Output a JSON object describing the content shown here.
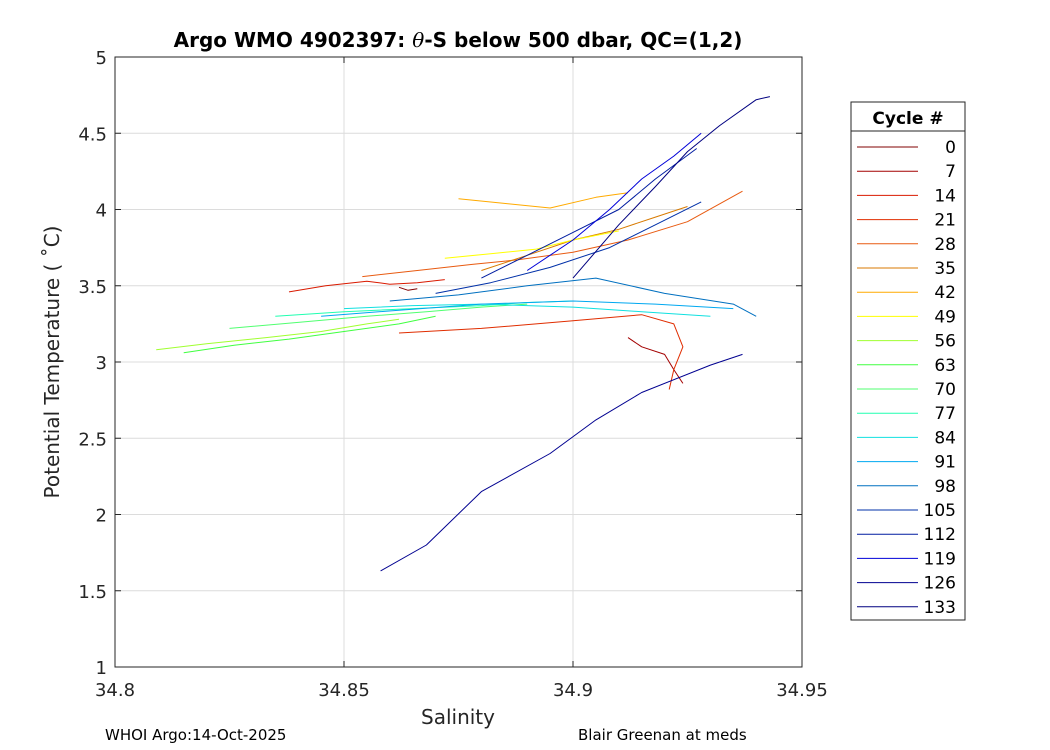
{
  "chart_data": {
    "type": "line",
    "title": "Argo WMO 4902397: θ-S below 500 dbar,  QC=(1,2)",
    "title_prefix": "Argo WMO 4902397: ",
    "title_theta": "θ",
    "title_suffix": "-S below 500 dbar,  QC=(1,2)",
    "xlabel": "Salinity",
    "ylabel": "Potential Temperature ( ˚C)",
    "xlim": [
      34.8,
      34.95
    ],
    "ylim": [
      1,
      5
    ],
    "xticks": [
      "34.8",
      "34.85",
      "34.9",
      "34.95"
    ],
    "yticks": [
      "1",
      "1.5",
      "2",
      "2.5",
      "3",
      "3.5",
      "4",
      "4.5",
      "5"
    ],
    "grid": true,
    "legend": {
      "title": "Cycle #",
      "placement": "outside-right",
      "entries": [
        "0",
        "7",
        "14",
        "21",
        "28",
        "35",
        "42",
        "49",
        "56",
        "63",
        "70",
        "77",
        "84",
        "91",
        "98",
        "105",
        "112",
        "119",
        "126",
        "133"
      ],
      "colors": [
        "#800000",
        "#a30000",
        "#d91a00",
        "#e02d00",
        "#e85a10",
        "#d87a00",
        "#ffaa00",
        "#ffff00",
        "#a0ff30",
        "#40ff40",
        "#50ff70",
        "#20ffb0",
        "#10e0e0",
        "#00a8f0",
        "#0070c0",
        "#0030a8",
        "#001ca0",
        "#0000d8",
        "#000090",
        "#000080"
      ]
    },
    "series": [
      {
        "name": "0",
        "color": "#800000",
        "x": [
          34.862,
          34.864,
          34.866
        ],
        "y": [
          3.49,
          3.47,
          3.48
        ]
      },
      {
        "name": "7",
        "color": "#a30000",
        "x": [
          34.912,
          34.915,
          34.92,
          34.922,
          34.924
        ],
        "y": [
          3.16,
          3.1,
          3.05,
          2.95,
          2.86
        ]
      },
      {
        "name": "14",
        "color": "#d91a00",
        "x": [
          34.838,
          34.846,
          34.855,
          34.86,
          34.866,
          34.872
        ],
        "y": [
          3.46,
          3.5,
          3.53,
          3.51,
          3.52,
          3.54
        ]
      },
      {
        "name": "21",
        "color": "#e02d00",
        "x": [
          34.862,
          34.88,
          34.9,
          34.915,
          34.922,
          34.924,
          34.922,
          34.921
        ],
        "y": [
          3.19,
          3.22,
          3.27,
          3.31,
          3.25,
          3.1,
          2.95,
          2.82
        ]
      },
      {
        "name": "28",
        "color": "#e85a10",
        "x": [
          34.854,
          34.866,
          34.878,
          34.888,
          34.9,
          34.912,
          34.925,
          34.937
        ],
        "y": [
          3.56,
          3.6,
          3.64,
          3.67,
          3.72,
          3.8,
          3.92,
          4.12
        ]
      },
      {
        "name": "35",
        "color": "#d87a00",
        "x": [
          34.88,
          34.89,
          34.9,
          34.91,
          34.918,
          34.925
        ],
        "y": [
          3.6,
          3.7,
          3.8,
          3.87,
          3.95,
          4.02
        ]
      },
      {
        "name": "42",
        "color": "#ffaa00",
        "x": [
          34.875,
          34.885,
          34.895,
          34.905,
          34.912
        ],
        "y": [
          4.07,
          4.04,
          4.01,
          4.08,
          4.11
        ]
      },
      {
        "name": "49",
        "color": "#ffff00",
        "x": [
          34.872,
          34.882,
          34.892,
          34.9,
          34.91
        ],
        "y": [
          3.68,
          3.71,
          3.74,
          3.8,
          3.86
        ]
      },
      {
        "name": "56",
        "color": "#a0ff30",
        "x": [
          34.809,
          34.82,
          34.833,
          34.845,
          34.855,
          34.862
        ],
        "y": [
          3.08,
          3.12,
          3.16,
          3.2,
          3.25,
          3.28
        ]
      },
      {
        "name": "63",
        "color": "#40ff40",
        "x": [
          34.815,
          34.826,
          34.838,
          34.85,
          34.862,
          34.87
        ],
        "y": [
          3.06,
          3.11,
          3.15,
          3.2,
          3.25,
          3.3
        ]
      },
      {
        "name": "70",
        "color": "#50ff70",
        "x": [
          34.825,
          34.84,
          34.855,
          34.868,
          34.88,
          34.89
        ],
        "y": [
          3.22,
          3.26,
          3.3,
          3.33,
          3.36,
          3.38
        ]
      },
      {
        "name": "77",
        "color": "#20ffb0",
        "x": [
          34.835,
          34.85,
          34.865,
          34.88,
          34.89,
          34.9
        ],
        "y": [
          3.3,
          3.33,
          3.35,
          3.37,
          3.39,
          3.4
        ]
      },
      {
        "name": "84",
        "color": "#10e0e0",
        "x": [
          34.85,
          34.865,
          34.88,
          34.9,
          34.915,
          34.93
        ],
        "y": [
          3.35,
          3.37,
          3.38,
          3.36,
          3.33,
          3.3
        ]
      },
      {
        "name": "91",
        "color": "#00a8f0",
        "x": [
          34.845,
          34.862,
          34.88,
          34.9,
          34.918,
          34.935
        ],
        "y": [
          3.3,
          3.34,
          3.38,
          3.4,
          3.38,
          3.35
        ]
      },
      {
        "name": "98",
        "color": "#0070c0",
        "x": [
          34.86,
          34.875,
          34.89,
          34.905,
          34.92,
          34.935,
          34.94
        ],
        "y": [
          3.4,
          3.44,
          3.5,
          3.55,
          3.45,
          3.38,
          3.3
        ]
      },
      {
        "name": "105",
        "color": "#0030a8",
        "x": [
          34.87,
          34.882,
          34.895,
          34.908,
          34.918,
          34.928
        ],
        "y": [
          3.45,
          3.52,
          3.62,
          3.75,
          3.9,
          4.05
        ]
      },
      {
        "name": "112",
        "color": "#001ca0",
        "x": [
          34.88,
          34.89,
          34.9,
          34.91,
          34.918,
          34.927
        ],
        "y": [
          3.55,
          3.7,
          3.85,
          4.0,
          4.2,
          4.4
        ]
      },
      {
        "name": "119",
        "color": "#0000d8",
        "x": [
          34.89,
          34.9,
          34.908,
          34.915,
          34.922,
          34.928
        ],
        "y": [
          3.6,
          3.8,
          4.0,
          4.2,
          4.35,
          4.5
        ]
      },
      {
        "name": "126",
        "color": "#000090",
        "x": [
          34.858,
          34.868,
          34.88,
          34.895,
          34.905,
          34.915,
          34.93,
          34.937
        ],
        "y": [
          1.63,
          1.8,
          2.15,
          2.4,
          2.62,
          2.8,
          2.98,
          3.05
        ]
      },
      {
        "name": "133",
        "color": "#000080",
        "x": [
          34.9,
          34.91,
          34.918,
          34.925,
          34.932,
          34.94,
          34.943
        ],
        "y": [
          3.55,
          3.9,
          4.15,
          4.38,
          4.55,
          4.72,
          4.74
        ]
      }
    ]
  },
  "footer": {
    "left": "WHOI Argo:14-Oct-2025",
    "right": "Blair Greenan at meds"
  }
}
